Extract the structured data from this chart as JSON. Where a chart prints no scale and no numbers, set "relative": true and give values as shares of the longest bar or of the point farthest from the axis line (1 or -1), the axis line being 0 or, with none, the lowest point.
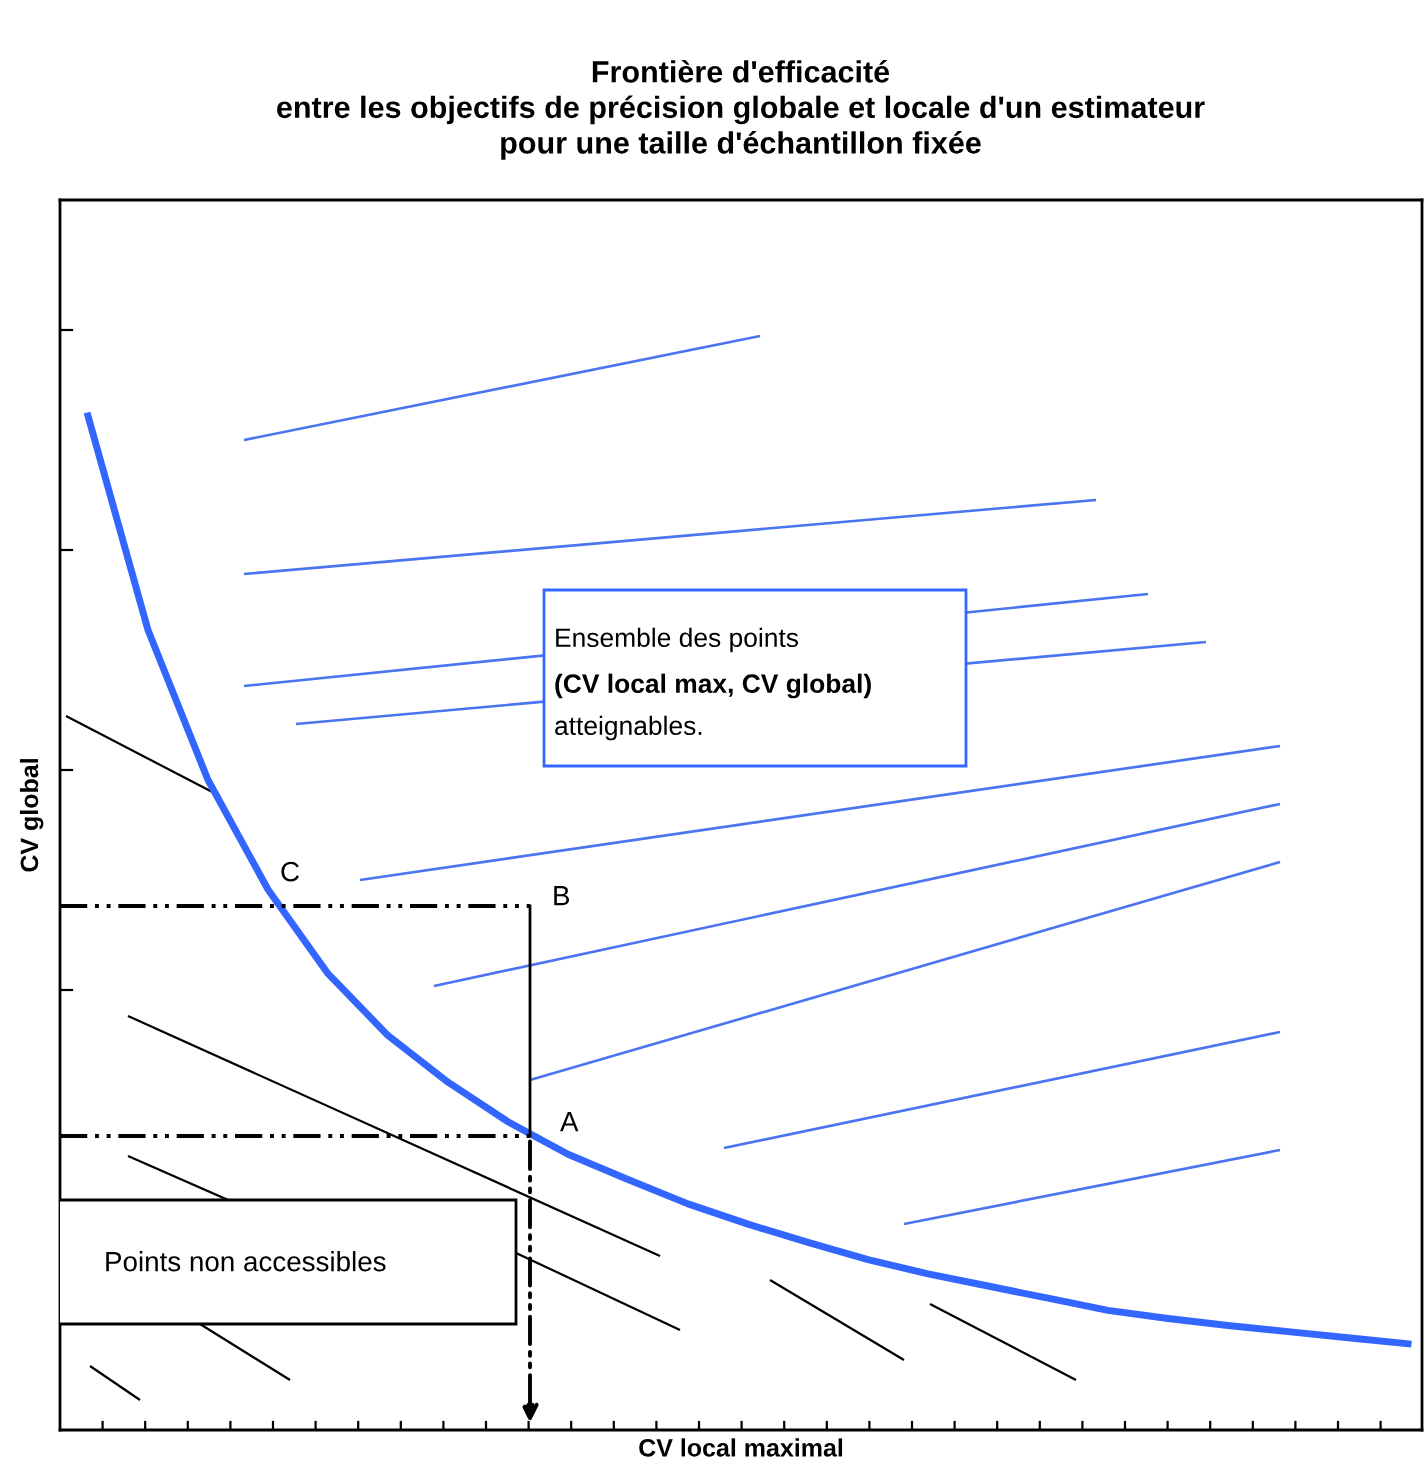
{
  "chart_data": {
    "type": "line",
    "title": "Frontière d'efficacité\nentre les objectifs de précision globale et locale d'un estimateur\npour une taille d'échantillon fixée",
    "xlabel": "CV local maximal",
    "ylabel": "CV global",
    "categories": [
      null,
      null,
      null,
      null,
      null,
      null,
      null,
      null,
      null,
      null,
      null,
      null,
      null,
      null,
      null,
      null,
      null,
      null,
      null,
      null,
      null,
      null,
      null
    ],
    "series": [
      {
        "color": "#3366ff",
        "values": [
          1.0,
          0.789,
          0.641,
          0.533,
          0.45,
          0.389,
          0.343,
          0.304,
          0.272,
          0.247,
          0.223,
          0.203,
          0.185,
          0.168,
          0.154,
          0.142,
          0.13,
          0.118,
          0.11,
          0.103,
          0.097,
          0.091,
          0.085
        ]
      }
    ],
    "relative": true,
    "legend": false,
    "marker": "none",
    "line_style": "solid",
    "annotations": [
      "Ensemble des points",
      "(CV local max, CV global)",
      "atteignables.",
      "Points non accessibles",
      "A",
      "B",
      "C"
    ]
  }
}
